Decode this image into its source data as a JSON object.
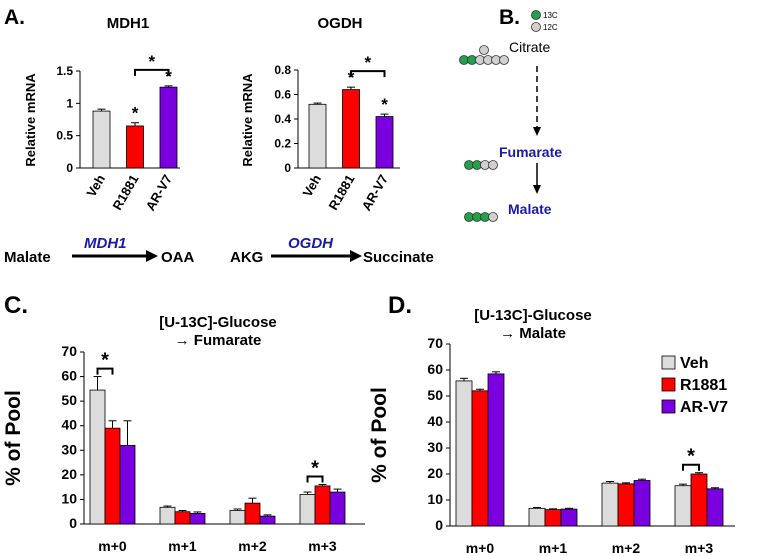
{
  "panel_labels": {
    "a": "A.",
    "b": "B.",
    "c": "C.",
    "d": "D."
  },
  "colors": {
    "veh": "#dcdcdc",
    "r1881": "#ff0000",
    "arv7": "#7b00e0",
    "blue_text": "#1a1aa8",
    "green": "#22a04a",
    "gray_dot": "#d0d0d0"
  },
  "panel_a": {
    "reactions": [
      {
        "substrate": "Malate",
        "enzyme": "MDH1",
        "product": "OAA"
      },
      {
        "substrate": "AKG",
        "enzyme": "OGDH",
        "product": "Succinate"
      }
    ]
  },
  "panel_b": {
    "legend_13c": "13C",
    "legend_12c": "12C",
    "citrate": "Citrate",
    "fumarate": "Fumarate",
    "malate": "Malate"
  },
  "star": "*",
  "chart_data": [
    {
      "id": "mdh1",
      "type": "bar",
      "title": "MDH1",
      "ylabel": "Relative mRNA",
      "categories": [
        "Veh",
        "R1881",
        "AR-V7"
      ],
      "values": [
        0.88,
        0.65,
        1.25
      ],
      "errors": [
        0.03,
        0.05,
        0.02
      ],
      "ylim": [
        0,
        1.5
      ],
      "yticks": [
        0,
        0.5,
        1,
        1.5
      ],
      "ytick_labels": [
        "0",
        "0.5",
        "1",
        "1.5"
      ],
      "stars_over_bars": [
        1,
        2
      ],
      "bracket": [
        1,
        2
      ]
    },
    {
      "id": "ogdh",
      "type": "bar",
      "title": "OGDH",
      "ylabel": "Relative mRNA",
      "categories": [
        "Veh",
        "R1881",
        "AR-V7"
      ],
      "values": [
        0.52,
        0.64,
        0.42
      ],
      "errors": [
        0.01,
        0.02,
        0.02
      ],
      "ylim": [
        0,
        0.8
      ],
      "yticks": [
        0,
        0.2,
        0.4,
        0.6,
        0.8
      ],
      "ytick_labels": [
        "0",
        "0.2",
        "0.4",
        "0.6",
        "0.8"
      ],
      "stars_over_bars": [
        1,
        2
      ],
      "bracket": [
        1,
        2
      ]
    },
    {
      "id": "fumarate",
      "type": "bar",
      "title_line1": "[U-13C]-Glucose",
      "title_line2": "→ Fumarate",
      "ylabel": "% of Pool",
      "categories": [
        "m+0",
        "m+1",
        "m+2",
        "m+3"
      ],
      "series": [
        {
          "name": "Veh",
          "values": [
            54.5,
            6.8,
            5.5,
            12.0
          ],
          "errors": [
            5.5,
            0.5,
            0.6,
            1.0
          ]
        },
        {
          "name": "R1881",
          "values": [
            39.0,
            5.0,
            8.5,
            15.5
          ],
          "errors": [
            3.0,
            0.5,
            2.0,
            0.6
          ]
        },
        {
          "name": "AR-V7",
          "values": [
            32.0,
            4.3,
            3.2,
            13.0
          ],
          "errors": [
            10.0,
            0.6,
            0.5,
            1.2
          ]
        }
      ],
      "ylim": [
        0,
        70
      ],
      "yticks": [
        0,
        10,
        20,
        30,
        40,
        50,
        60,
        70
      ],
      "ytick_labels": [
        "0",
        "10",
        "20",
        "30",
        "40",
        "50",
        "60",
        "70"
      ],
      "brackets": [
        {
          "category": 0,
          "from": 0,
          "to": 1
        },
        {
          "category": 3,
          "from": 0,
          "to": 1
        }
      ]
    },
    {
      "id": "malate",
      "type": "bar",
      "title_line1": "[U-13C]-Glucose",
      "title_line2": "→ Malate",
      "ylabel": "% of Pool",
      "categories": [
        "m+0",
        "m+1",
        "m+2",
        "m+3"
      ],
      "series": [
        {
          "name": "Veh",
          "values": [
            55.8,
            6.8,
            16.5,
            15.5
          ],
          "errors": [
            1.0,
            0.3,
            0.6,
            0.6
          ]
        },
        {
          "name": "R1881",
          "values": [
            52.0,
            6.3,
            16.2,
            20.0
          ],
          "errors": [
            0.6,
            0.3,
            0.4,
            0.5
          ]
        },
        {
          "name": "AR-V7",
          "values": [
            58.5,
            6.5,
            17.5,
            14.3
          ],
          "errors": [
            0.8,
            0.3,
            0.5,
            0.4
          ]
        }
      ],
      "ylim": [
        0,
        70
      ],
      "yticks": [
        0,
        10,
        20,
        30,
        40,
        50,
        60,
        70
      ],
      "ytick_labels": [
        "0",
        "10",
        "20",
        "30",
        "40",
        "50",
        "60",
        "70"
      ],
      "legend": [
        "Veh",
        "R1881",
        "AR-V7"
      ],
      "legend_position": "top-right",
      "brackets": [
        {
          "category": 3,
          "from": 0,
          "to": 1
        }
      ]
    }
  ]
}
